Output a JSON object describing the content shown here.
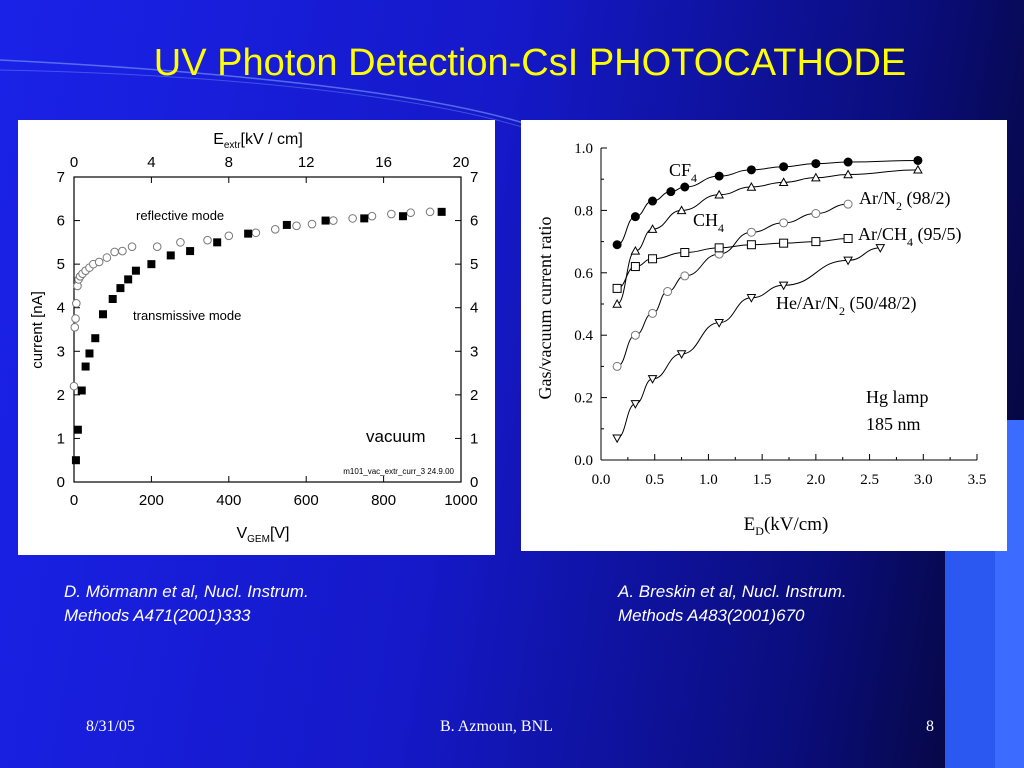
{
  "slide": {
    "title": "UV Photon Detection-CsI PHOTOCATHODE",
    "citation_left": [
      "D. Mörmann et al, Nucl. Instrum.",
      "Methods A471(2001)333"
    ],
    "citation_right": [
      "A. Breskin et al, Nucl. Instrum.",
      "Methods A483(2001)670"
    ],
    "footer": {
      "date": "8/31/05",
      "author": "B. Azmoun, BNL",
      "page": "8"
    },
    "colors": {
      "title": "#ffff00",
      "background": "#1a22e8",
      "accent_bar": "#2a58f0"
    }
  },
  "chart_data": [
    {
      "type": "scatter",
      "top_axis_label": "E",
      "top_axis_sub": "extr",
      "top_axis_unit": "[kV / cm]",
      "top_ticks": [
        "0",
        "4",
        "8",
        "12",
        "16",
        "20"
      ],
      "xlabel": "V",
      "xlabel_sub": "GEM",
      "xlabel_unit": "[V]",
      "ylabel": "current [nA]",
      "x_ticks": [
        "0",
        "200",
        "400",
        "600",
        "800",
        "1000"
      ],
      "y_ticks": [
        "0",
        "1",
        "2",
        "3",
        "4",
        "5",
        "6",
        "7"
      ],
      "xlim": [
        0,
        1000
      ],
      "ylim": [
        0,
        7
      ],
      "annotations": [
        "reflective mode",
        "transmissive mode",
        "vacuum",
        "m101_vac_extr_curr_3 24.9.00"
      ],
      "series": [
        {
          "name": "reflective mode",
          "marker": "open-circle",
          "x": [
            0,
            2,
            4,
            6,
            9,
            12,
            16,
            22,
            30,
            40,
            50,
            65,
            85,
            105,
            125,
            150,
            215,
            275,
            345,
            400,
            470,
            520,
            575,
            615,
            670,
            720,
            770,
            820,
            870,
            920
          ],
          "y": [
            2.2,
            3.55,
            3.75,
            4.1,
            4.5,
            4.65,
            4.72,
            4.78,
            4.85,
            4.92,
            5.0,
            5.05,
            5.15,
            5.28,
            5.3,
            5.4,
            5.4,
            5.5,
            5.55,
            5.65,
            5.72,
            5.8,
            5.88,
            5.92,
            6.0,
            6.05,
            6.1,
            6.15,
            6.18,
            6.2
          ]
        },
        {
          "name": "transmissive mode",
          "marker": "filled-square",
          "x": [
            5,
            10,
            20,
            30,
            40,
            55,
            75,
            100,
            120,
            140,
            160,
            200,
            250,
            300,
            370,
            450,
            550,
            650,
            750,
            850,
            950
          ],
          "y": [
            0.5,
            1.2,
            2.1,
            2.65,
            2.95,
            3.3,
            3.85,
            4.2,
            4.45,
            4.65,
            4.85,
            5.0,
            5.2,
            5.3,
            5.5,
            5.7,
            5.9,
            6.0,
            6.05,
            6.1,
            6.2
          ]
        }
      ]
    },
    {
      "type": "line",
      "xlabel": "E",
      "xlabel_sub": "D",
      "xlabel_unit": "(kV/cm)",
      "ylabel": "Gas/vacuum current ratio",
      "x_ticks": [
        "0.0",
        "0.5",
        "1.0",
        "1.5",
        "2.0",
        "2.5",
        "3.0",
        "3.5"
      ],
      "y_ticks": [
        "0.0",
        "0.2",
        "0.4",
        "0.6",
        "0.8",
        "1.0"
      ],
      "xlim": [
        0,
        3.5
      ],
      "ylim": [
        0,
        1.0
      ],
      "annotation_lines": [
        "Hg lamp",
        "185 nm"
      ],
      "series": [
        {
          "name": "CF4",
          "label_main": "CF",
          "label_sub": "4",
          "label_rest": "",
          "marker": "filled-circle",
          "x": [
            0.15,
            0.32,
            0.48,
            0.65,
            0.78,
            1.1,
            1.4,
            1.7,
            2.0,
            2.3,
            2.95
          ],
          "y": [
            0.69,
            0.78,
            0.83,
            0.86,
            0.875,
            0.91,
            0.93,
            0.94,
            0.95,
            0.955,
            0.96
          ]
        },
        {
          "name": "CH4",
          "label_main": "CH",
          "label_sub": "4",
          "label_rest": "",
          "marker": "open-triangle-up",
          "x": [
            0.15,
            0.32,
            0.48,
            0.75,
            1.1,
            1.4,
            1.7,
            2.0,
            2.3,
            2.95
          ],
          "y": [
            0.5,
            0.67,
            0.74,
            0.8,
            0.85,
            0.875,
            0.89,
            0.905,
            0.915,
            0.93
          ]
        },
        {
          "name": "Ar/N2 (98/2)",
          "label_main": "Ar/N",
          "label_sub": "2",
          "label_rest": " (98/2)",
          "marker": "open-circle",
          "x": [
            0.15,
            0.32,
            0.48,
            0.62,
            0.78,
            1.1,
            1.4,
            1.7,
            2.0,
            2.3
          ],
          "y": [
            0.3,
            0.4,
            0.47,
            0.54,
            0.59,
            0.66,
            0.73,
            0.76,
            0.79,
            0.82
          ]
        },
        {
          "name": "Ar/CH4 (95/5)",
          "label_main": "Ar/CH",
          "label_sub": "4",
          "label_rest": " (95/5)",
          "marker": "open-square",
          "x": [
            0.15,
            0.32,
            0.48,
            0.78,
            1.1,
            1.4,
            1.7,
            2.0,
            2.3
          ],
          "y": [
            0.55,
            0.62,
            0.645,
            0.665,
            0.68,
            0.69,
            0.695,
            0.7,
            0.71
          ]
        },
        {
          "name": "He/Ar/N2 (50/48/2)",
          "label_main": "He/Ar/N",
          "label_sub": "2",
          "label_rest": " (50/48/2)",
          "marker": "open-triangle-down",
          "x": [
            0.15,
            0.32,
            0.48,
            0.75,
            1.1,
            1.4,
            1.7,
            2.3,
            2.6
          ],
          "y": [
            0.07,
            0.18,
            0.26,
            0.34,
            0.44,
            0.52,
            0.56,
            0.64,
            0.68
          ]
        }
      ]
    }
  ]
}
